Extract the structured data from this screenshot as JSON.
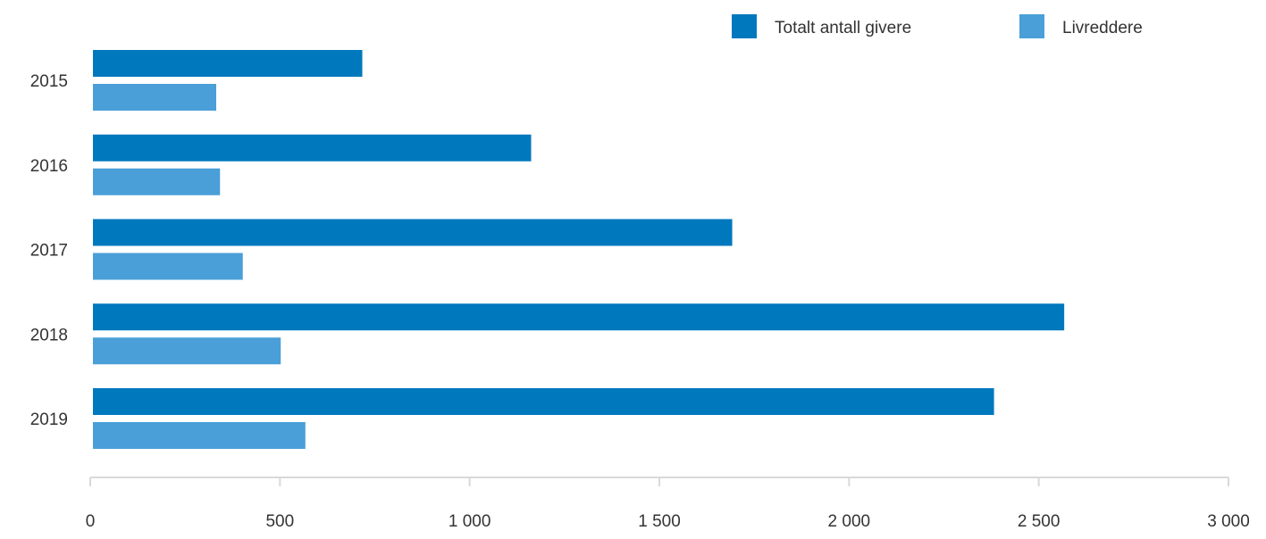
{
  "chart_data": {
    "type": "bar",
    "orientation": "horizontal",
    "title": "",
    "xlabel": "",
    "ylabel": "",
    "categories": [
      "2015",
      "2016",
      "2017",
      "2018",
      "2019"
    ],
    "series": [
      {
        "name": "Totalt antall givere",
        "color": "#0078bd",
        "values": [
          710,
          1155,
          1685,
          2560,
          2375
        ]
      },
      {
        "name": "Livreddere",
        "color": "#4a9fd8",
        "values": [
          325,
          335,
          395,
          495,
          560
        ]
      }
    ],
    "xlim": [
      0,
      3000
    ],
    "x_ticks": [
      0,
      500,
      1000,
      1500,
      2000,
      2500,
      3000
    ],
    "x_tick_labels": [
      "0",
      "500",
      "1 000",
      "1 500",
      "2 000",
      "2 500",
      "3 000"
    ],
    "grid": false,
    "legend_position": "top-right"
  }
}
